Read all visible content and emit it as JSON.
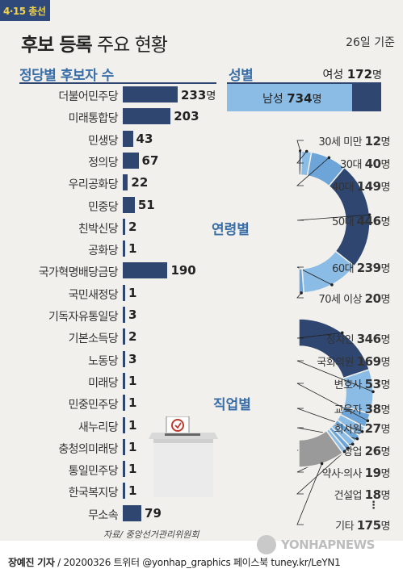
{
  "header": {
    "badge": "4·15 총선",
    "title_bold": "후보 등록",
    "title_rest": " 주요 현황",
    "date_note": "26일 기준"
  },
  "colors": {
    "dark": "#2e4670",
    "mid": "#6ea5d8",
    "light": "#8bbce6",
    "gray": "#9a9a9a",
    "accent": "#3a6ea8"
  },
  "unit": "명",
  "chart_data": [
    {
      "type": "bar",
      "orientation": "horizontal",
      "title": "정당별 후보자 수",
      "categories": [
        "더불어민주당",
        "미래통합당",
        "민생당",
        "정의당",
        "우리공화당",
        "민중당",
        "친박신당",
        "공화당",
        "국가혁명배당금당",
        "국민새정당",
        "기독자유통일당",
        "기본소득당",
        "노동당",
        "미래당",
        "민중민주당",
        "새누리당",
        "충청의미래당",
        "통일민주당",
        "한국복지당",
        "무소속"
      ],
      "values": [
        233,
        203,
        43,
        67,
        22,
        51,
        2,
        1,
        190,
        1,
        3,
        2,
        3,
        1,
        1,
        1,
        1,
        1,
        1,
        79
      ],
      "show_unit_for": [
        "더불어민주당"
      ]
    },
    {
      "type": "bar",
      "orientation": "horizontal",
      "stacked": true,
      "title": "성별",
      "series": [
        {
          "name": "남성",
          "values": [
            734
          ]
        },
        {
          "name": "여성",
          "values": [
            172
          ]
        }
      ]
    },
    {
      "type": "pie",
      "subtype": "half-donut",
      "title": "연령별",
      "categories": [
        "30세 미만",
        "30대",
        "40대",
        "50대",
        "60대",
        "70세 이상"
      ],
      "values": [
        12,
        40,
        149,
        446,
        239,
        20
      ],
      "colors": [
        "#2e4670",
        "#8bbce6",
        "#6ea5d8",
        "#2e4670",
        "#8bbce6",
        "#6ea5d8"
      ]
    },
    {
      "type": "pie",
      "subtype": "half-donut",
      "title": "직업별",
      "categories": [
        "정치인",
        "국회의원",
        "변호사",
        "교육자",
        "회사원",
        "상업",
        "약사·의사",
        "건설업",
        "기타"
      ],
      "values": [
        346,
        169,
        53,
        38,
        27,
        26,
        19,
        18,
        175
      ],
      "colors": [
        "#2e4670",
        "#8bbce6",
        "#6ea5d8",
        "#8bbce6",
        "#6ea5d8",
        "#8bbce6",
        "#6ea5d8",
        "#8bbce6",
        "#9a9a9a"
      ],
      "ellipsis": "⋮"
    }
  ],
  "source": "자료/ 중앙선거관리위원회",
  "footer": {
    "author": "장예진 기자",
    "rest": " / 20200326 트위터 @yonhap_graphics  페이스북 tuney.kr/LeYN1"
  },
  "watermark": "YONHAPNEWS",
  "icons": {
    "ballot_box": "ballot-box-icon",
    "logo": "yonhap-logo-icon"
  }
}
